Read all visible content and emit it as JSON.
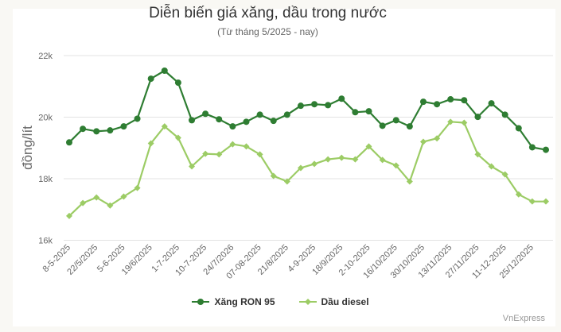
{
  "chart_data": {
    "type": "line",
    "title": "Diễn biến giá xăng, dầu trong nước",
    "subtitle": "(Từ tháng 5/2025 - nay)",
    "xlabel": "",
    "ylabel": "đồng/lít",
    "ylim": [
      16000,
      22000
    ],
    "yticks": [
      {
        "value": 16000,
        "label": "16k"
      },
      {
        "value": 18000,
        "label": "18k"
      },
      {
        "value": 20000,
        "label": "20k"
      },
      {
        "value": 22000,
        "label": "22k"
      }
    ],
    "grid": true,
    "legend_position": "bottom",
    "x_tick_labels": [
      "8-5-2025",
      "22/5/2025",
      "5-6-2025",
      "19/6/2025",
      "1-7-2025",
      "10-7-2025",
      "24/7/2026",
      "07-08-2025",
      "21/8/2025",
      "4-9-2025",
      "18/9/2025",
      "2-10-2025",
      "16/10/2025",
      "30/10/2025",
      "13/11/2025",
      "27/11/2025",
      "11-12-2025",
      "25/12/2025"
    ],
    "x_tick_every": 2,
    "point_count": 36,
    "series": [
      {
        "name": "Xăng RON 95",
        "color": "#2e7d32",
        "marker": "circle",
        "values": [
          19180,
          19620,
          19540,
          19570,
          19700,
          19950,
          21250,
          21510,
          21120,
          19900,
          20110,
          19930,
          19700,
          19850,
          20080,
          19880,
          20080,
          20370,
          20420,
          20390,
          20600,
          20160,
          20190,
          19720,
          19900,
          19700,
          20500,
          20420,
          20580,
          20550,
          20010,
          20450,
          20080,
          19640,
          19020,
          18940
        ]
      },
      {
        "name": "Dầu diesel",
        "color": "#9ccc65",
        "marker": "diamond",
        "values": [
          16790,
          17210,
          17390,
          17130,
          17420,
          17700,
          19150,
          19700,
          19330,
          18400,
          18810,
          18790,
          19120,
          19050,
          18790,
          18090,
          17910,
          18350,
          18480,
          18630,
          18680,
          18630,
          19050,
          18610,
          18430,
          17910,
          19200,
          19310,
          19850,
          19820,
          18790,
          18400,
          18140,
          17490,
          17260,
          17260
        ]
      }
    ]
  },
  "legend": {
    "items": [
      {
        "label": "Xăng RON 95",
        "color": "#2e7d32"
      },
      {
        "label": "Dầu diesel",
        "color": "#9ccc65"
      }
    ]
  },
  "credit": "VnExpress"
}
